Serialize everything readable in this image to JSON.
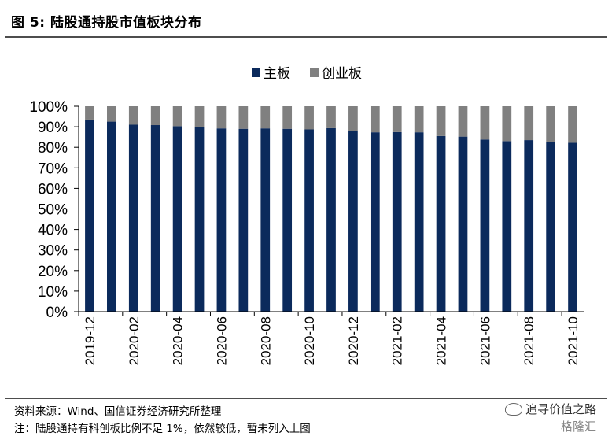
{
  "title": "图 5:  陆股通持股市值板块分布",
  "chart_data": {
    "type": "bar",
    "stacked": true,
    "percent": true,
    "categories": [
      "2019-12",
      "2020-01",
      "2020-02",
      "2020-03",
      "2020-04",
      "2020-05",
      "2020-06",
      "2020-07",
      "2020-08",
      "2020-09",
      "2020-10",
      "2020-11",
      "2020-12",
      "2021-01",
      "2021-02",
      "2021-03",
      "2021-04",
      "2021-05",
      "2021-06",
      "2021-07",
      "2021-08",
      "2021-09",
      "2021-10"
    ],
    "x_tick_labels": [
      "2019-12",
      "2020-02",
      "2020-04",
      "2020-06",
      "2020-08",
      "2020-10",
      "2020-12",
      "2021-02",
      "2021-04",
      "2021-06",
      "2021-08",
      "2021-10"
    ],
    "series": [
      {
        "name": "主板",
        "color": "#0b2a5c",
        "values": [
          93.5,
          92.5,
          91,
          90.8,
          90.3,
          89.8,
          89.2,
          89,
          89.2,
          89,
          88.7,
          89.3,
          87.8,
          87.3,
          87.4,
          87.3,
          85.5,
          85.2,
          83.8,
          83,
          83.5,
          82.6,
          82.2
        ]
      },
      {
        "name": "创业板",
        "color": "#808080",
        "values": [
          6.5,
          7.5,
          9,
          9.2,
          9.7,
          10.2,
          10.8,
          11,
          10.8,
          11,
          11.3,
          10.7,
          12.2,
          12.7,
          12.6,
          12.7,
          14.5,
          14.8,
          16.2,
          17,
          16.5,
          17.4,
          17.8
        ]
      }
    ],
    "ylim": [
      0,
      100
    ],
    "y_ticks": [
      "0%",
      "10%",
      "20%",
      "30%",
      "40%",
      "50%",
      "60%",
      "70%",
      "80%",
      "90%",
      "100%"
    ],
    "grid": false,
    "legend_position": "top-center"
  },
  "footer": {
    "source": "资料来源：Wind、国信证券经济研究所整理",
    "note": "注：陆股通持有科创板比例不足 1%，依然较低，暂未列入上图"
  },
  "watermark": {
    "line1": "追寻价值之路",
    "line2": "格隆汇"
  }
}
